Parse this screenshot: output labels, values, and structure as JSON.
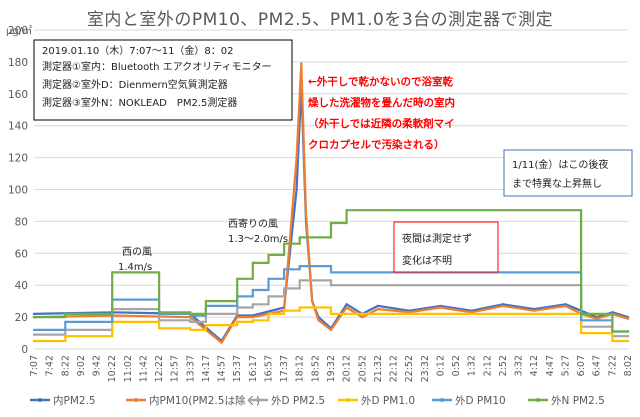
{
  "title": "室内と室外のPM10、PM2.5、PM1.0を3台の測定器で測定",
  "unit": "μg/㎥",
  "info_box": {
    "line1": "2019.01.10（木）7:07〜11（金）8：02",
    "line2": "測定器①室内：Bluetooth エアクオリティモニター",
    "line3": "測定器②室外D：Dienmern空気質測定器",
    "line4": "測定器③室外N：NOKLEAD　PM2.5測定器"
  },
  "annotations": {
    "wind1_line1": "西の風",
    "wind1_line2": "1.4m/s",
    "wind2_line1": "西寄りの風",
    "wind2_line2": "1.3〜2.0m/s",
    "red_line1": "←外干しで乾かないので浴室乾",
    "red_line2": "燥した洗濯物を畳んだ時の室内",
    "red_line3": "（外干しでは近隣の柔軟剤マイ",
    "red_line4": "クロカプセルで汚染される）",
    "night_line1": "夜間は測定せず",
    "night_line2": "変化は不明",
    "right_line1": "1/11(金）はこの後夜",
    "right_line2": "まで特異な上昇無し"
  },
  "chart_data": {
    "type": "line",
    "title": "室内と室外のPM10、PM2.5、PM1.0を3台の測定器で測定",
    "ylabel": "μg/㎥",
    "ylim": [
      0,
      200
    ],
    "yticks": [
      0,
      20,
      40,
      60,
      80,
      100,
      120,
      140,
      160,
      180,
      200
    ],
    "x_ticks": [
      "7:07",
      "7:42",
      "8:22",
      "9:02",
      "9:42",
      "10:22",
      "11:02",
      "11:42",
      "12:22",
      "12:57",
      "13:37",
      "14:17",
      "14:57",
      "15:37",
      "16:17",
      "16:57",
      "17:37",
      "18:12",
      "18:52",
      "19:32",
      "20:12",
      "20:52",
      "21:32",
      "22:12",
      "22:52",
      "23:32",
      "0:12",
      "0:52",
      "1:32",
      "2:12",
      "2:52",
      "3:32",
      "4:12",
      "4:47",
      "5:27",
      "6:07",
      "6:47",
      "7:22",
      "8:02"
    ],
    "grid": true,
    "legend_position": "bottom",
    "series": [
      {
        "name": "内PM2.5",
        "color": "#4472c4",
        "points": [
          [
            0,
            22
          ],
          [
            5,
            23
          ],
          [
            10,
            22
          ],
          [
            12,
            5
          ],
          [
            13,
            21
          ],
          [
            14,
            21
          ],
          [
            16,
            26
          ],
          [
            16.8,
            100
          ],
          [
            17.1,
            165
          ],
          [
            17.4,
            80
          ],
          [
            17.8,
            30
          ],
          [
            18.2,
            20
          ],
          [
            19,
            13
          ],
          [
            20,
            28
          ],
          [
            21,
            22
          ],
          [
            22,
            27
          ],
          [
            24,
            24
          ],
          [
            26,
            27
          ],
          [
            28,
            24
          ],
          [
            30,
            28
          ],
          [
            32,
            25
          ],
          [
            34,
            28
          ],
          [
            35,
            24
          ],
          [
            36,
            20
          ],
          [
            37,
            23
          ],
          [
            38,
            20
          ]
        ]
      },
      {
        "name": "内PM10(PM2.5は除く)",
        "color": "#ed7d31",
        "points": [
          [
            0,
            20
          ],
          [
            5,
            21
          ],
          [
            10,
            20
          ],
          [
            12,
            4
          ],
          [
            13,
            20
          ],
          [
            14,
            20
          ],
          [
            16,
            24
          ],
          [
            16.8,
            120
          ],
          [
            17.1,
            179
          ],
          [
            17.4,
            85
          ],
          [
            17.8,
            30
          ],
          [
            18.2,
            18
          ],
          [
            19,
            12
          ],
          [
            20,
            26
          ],
          [
            21,
            20
          ],
          [
            22,
            25
          ],
          [
            24,
            23
          ],
          [
            26,
            26
          ],
          [
            28,
            23
          ],
          [
            30,
            27
          ],
          [
            32,
            24
          ],
          [
            34,
            27
          ],
          [
            35,
            22
          ],
          [
            36,
            19
          ],
          [
            37,
            22
          ],
          [
            38,
            19
          ]
        ]
      },
      {
        "name": "外D PM2.5",
        "color": "#a5a5a5",
        "points": [
          [
            0,
            9
          ],
          [
            2,
            9
          ],
          [
            2,
            12
          ],
          [
            5,
            12
          ],
          [
            5,
            25
          ],
          [
            8,
            25
          ],
          [
            8,
            18
          ],
          [
            10,
            18
          ],
          [
            10,
            17
          ],
          [
            11,
            17
          ],
          [
            11,
            22
          ],
          [
            13,
            22
          ],
          [
            13,
            26
          ],
          [
            14,
            26
          ],
          [
            14,
            28
          ],
          [
            15,
            28
          ],
          [
            15,
            33
          ],
          [
            16,
            33
          ],
          [
            16,
            38
          ],
          [
            17,
            38
          ],
          [
            17,
            43
          ],
          [
            19,
            43
          ],
          [
            19,
            40
          ],
          [
            35,
            40
          ],
          [
            35,
            14
          ],
          [
            37,
            14
          ],
          [
            37,
            8
          ],
          [
            38,
            8
          ]
        ]
      },
      {
        "name": "外D PM1.0",
        "color": "#ffc000",
        "points": [
          [
            0,
            5
          ],
          [
            2,
            5
          ],
          [
            2,
            8
          ],
          [
            5,
            8
          ],
          [
            5,
            17
          ],
          [
            8,
            17
          ],
          [
            8,
            13
          ],
          [
            10,
            13
          ],
          [
            10,
            12
          ],
          [
            11,
            12
          ],
          [
            11,
            15
          ],
          [
            13,
            15
          ],
          [
            13,
            17
          ],
          [
            14,
            17
          ],
          [
            14,
            18
          ],
          [
            15,
            18
          ],
          [
            15,
            22
          ],
          [
            16,
            22
          ],
          [
            16,
            24
          ],
          [
            17,
            24
          ],
          [
            17,
            26
          ],
          [
            19,
            26
          ],
          [
            19,
            22
          ],
          [
            35,
            22
          ],
          [
            35,
            10
          ],
          [
            37,
            10
          ],
          [
            37,
            5
          ],
          [
            38,
            5
          ]
        ]
      },
      {
        "name": "外D PM10",
        "color": "#5b9bd5",
        "points": [
          [
            0,
            12
          ],
          [
            2,
            12
          ],
          [
            2,
            17
          ],
          [
            5,
            17
          ],
          [
            5,
            31
          ],
          [
            8,
            31
          ],
          [
            8,
            22
          ],
          [
            10,
            22
          ],
          [
            10,
            21
          ],
          [
            11,
            21
          ],
          [
            11,
            27
          ],
          [
            13,
            27
          ],
          [
            13,
            33
          ],
          [
            14,
            33
          ],
          [
            14,
            37
          ],
          [
            15,
            37
          ],
          [
            15,
            44
          ],
          [
            16,
            44
          ],
          [
            16,
            50
          ],
          [
            17,
            50
          ],
          [
            17,
            52
          ],
          [
            19,
            52
          ],
          [
            19,
            48
          ],
          [
            35,
            48
          ],
          [
            35,
            18
          ],
          [
            37,
            18
          ],
          [
            37,
            11
          ],
          [
            38,
            11
          ]
        ]
      },
      {
        "name": "外N PM2.5",
        "color": "#70ad47",
        "points": [
          [
            0,
            20
          ],
          [
            2,
            20
          ],
          [
            2,
            22
          ],
          [
            5,
            22
          ],
          [
            5,
            48
          ],
          [
            8,
            48
          ],
          [
            8,
            23
          ],
          [
            10,
            23
          ],
          [
            10,
            22
          ],
          [
            11,
            22
          ],
          [
            11,
            30
          ],
          [
            13,
            30
          ],
          [
            13,
            44
          ],
          [
            14,
            44
          ],
          [
            14,
            54
          ],
          [
            15,
            54
          ],
          [
            15,
            59
          ],
          [
            16,
            59
          ],
          [
            16,
            66
          ],
          [
            17,
            66
          ],
          [
            17,
            70
          ],
          [
            19,
            70
          ],
          [
            19,
            79
          ],
          [
            20,
            79
          ],
          [
            20,
            87
          ],
          [
            35,
            87
          ],
          [
            35,
            22
          ],
          [
            37,
            22
          ],
          [
            37,
            11
          ],
          [
            38,
            11
          ]
        ]
      }
    ]
  }
}
